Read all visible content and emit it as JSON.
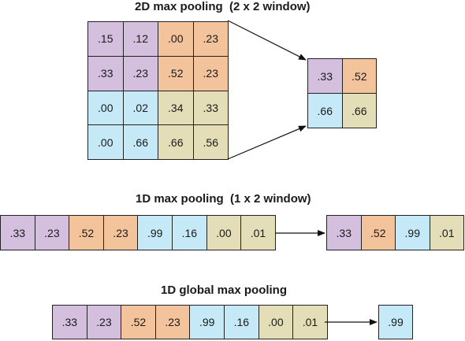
{
  "colors": {
    "purple": "#d4bfdf",
    "orange": "#f3c49b",
    "blue": "#c5e9f6",
    "tan": "#e3deb8"
  },
  "section_2d": {
    "title": "2D max pooling  (2 x 2 window)",
    "input": [
      [
        {
          "v": ".15",
          "c": "purple"
        },
        {
          "v": ".12",
          "c": "purple"
        },
        {
          "v": ".00",
          "c": "orange"
        },
        {
          "v": ".23",
          "c": "orange"
        }
      ],
      [
        {
          "v": ".33",
          "c": "purple"
        },
        {
          "v": ".23",
          "c": "purple"
        },
        {
          "v": ".52",
          "c": "orange"
        },
        {
          "v": ".23",
          "c": "orange"
        }
      ],
      [
        {
          "v": ".00",
          "c": "blue"
        },
        {
          "v": ".02",
          "c": "blue"
        },
        {
          "v": ".34",
          "c": "tan"
        },
        {
          "v": ".33",
          "c": "tan"
        }
      ],
      [
        {
          "v": ".00",
          "c": "blue"
        },
        {
          "v": ".66",
          "c": "blue"
        },
        {
          "v": ".66",
          "c": "tan"
        },
        {
          "v": ".56",
          "c": "tan"
        }
      ]
    ],
    "output": [
      [
        {
          "v": ".33",
          "c": "purple"
        },
        {
          "v": ".52",
          "c": "orange"
        }
      ],
      [
        {
          "v": ".66",
          "c": "blue"
        },
        {
          "v": ".66",
          "c": "tan"
        }
      ]
    ]
  },
  "section_1d": {
    "title": "1D max pooling  (1 x 2 window)",
    "input": [
      {
        "v": ".33",
        "c": "purple"
      },
      {
        "v": ".23",
        "c": "purple"
      },
      {
        "v": ".52",
        "c": "orange"
      },
      {
        "v": ".23",
        "c": "orange"
      },
      {
        "v": ".99",
        "c": "blue"
      },
      {
        "v": ".16",
        "c": "blue"
      },
      {
        "v": ".00",
        "c": "tan"
      },
      {
        "v": ".01",
        "c": "tan"
      }
    ],
    "output": [
      {
        "v": ".33",
        "c": "purple"
      },
      {
        "v": ".52",
        "c": "orange"
      },
      {
        "v": ".99",
        "c": "blue"
      },
      {
        "v": ".01",
        "c": "tan"
      }
    ]
  },
  "section_global": {
    "title": "1D global max pooling",
    "input": [
      {
        "v": ".33",
        "c": "purple"
      },
      {
        "v": ".23",
        "c": "purple"
      },
      {
        "v": ".52",
        "c": "orange"
      },
      {
        "v": ".23",
        "c": "orange"
      },
      {
        "v": ".99",
        "c": "blue"
      },
      {
        "v": ".16",
        "c": "blue"
      },
      {
        "v": ".00",
        "c": "tan"
      },
      {
        "v": ".01",
        "c": "tan"
      }
    ],
    "output": [
      {
        "v": ".99",
        "c": "blue"
      }
    ]
  }
}
